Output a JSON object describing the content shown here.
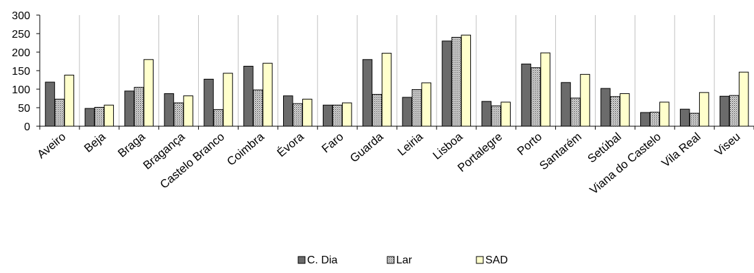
{
  "chart_data": {
    "type": "bar",
    "categories": [
      "Aveiro",
      "Beja",
      "Braga",
      "Bragança",
      "Castelo Branco",
      "Coimbra",
      "Évora",
      "Faro",
      "Guarda",
      "Leiria",
      "Lisboa",
      "Portalegre",
      "Porto",
      "Santarém",
      "Setúbal",
      "Viana do Castelo",
      "Vila Real",
      "Viseu"
    ],
    "series": [
      {
        "name": "C. Dia",
        "color": "#6b6b6b",
        "pattern": "solid",
        "values": [
          119,
          48,
          95,
          88,
          127,
          162,
          82,
          57,
          180,
          78,
          230,
          67,
          168,
          118,
          102,
          37,
          46,
          81
        ]
      },
      {
        "name": "Lar",
        "color": "#c8c8c8",
        "pattern": "dotted",
        "values": [
          73,
          51,
          105,
          63,
          45,
          98,
          61,
          57,
          86,
          99,
          240,
          55,
          158,
          76,
          80,
          38,
          35,
          83
        ]
      },
      {
        "name": "SAD",
        "color": "#ffffcc",
        "pattern": "solid",
        "values": [
          138,
          57,
          180,
          82,
          143,
          170,
          73,
          63,
          197,
          117,
          246,
          65,
          198,
          140,
          88,
          65,
          91,
          146
        ]
      }
    ],
    "ylim": [
      0,
      300
    ],
    "yticks": [
      0,
      50,
      100,
      150,
      200,
      250,
      300
    ],
    "ytick_labels": [
      "0",
      "50",
      "100",
      "150",
      "200",
      "250",
      "300"
    ],
    "grid": "vertical category separators",
    "legend_position": "bottom-center",
    "title": "",
    "xlabel": "",
    "ylabel": ""
  }
}
